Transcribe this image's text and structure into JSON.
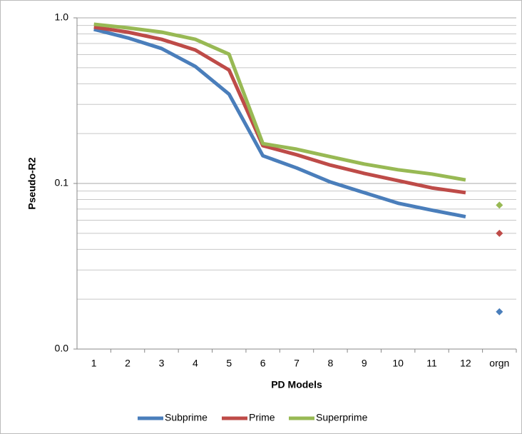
{
  "chart_data": {
    "type": "line",
    "x_label": "PD Models",
    "y_label": "Pseudo-R2",
    "categories": [
      "1",
      "2",
      "3",
      "4",
      "5",
      "6",
      "7",
      "8",
      "9",
      "10",
      "11",
      "12",
      "orgn"
    ],
    "marker_only_categories": [
      "orgn"
    ],
    "log_y": true,
    "ylim": [
      0.01,
      1
    ],
    "yticks": [
      {
        "value": 0.01,
        "label": "0.0"
      },
      {
        "value": 0.1,
        "label": "0.1"
      },
      {
        "value": 1,
        "label": "1.0"
      }
    ],
    "minor_yticks": [
      0.02,
      0.03,
      0.04,
      0.05,
      0.06,
      0.07,
      0.08,
      0.09,
      0.2,
      0.3,
      0.4,
      0.5,
      0.6,
      0.7,
      0.8,
      0.9
    ],
    "grid": true,
    "legend": "bottom",
    "series": [
      {
        "name": "Subprime",
        "color": "#4a7ebb",
        "values": [
          0.853,
          0.757,
          0.653,
          0.509,
          0.346,
          0.147,
          0.124,
          0.102,
          0.088,
          0.076,
          0.069,
          0.063,
          0.0168
        ]
      },
      {
        "name": "Prime",
        "color": "#be4b48",
        "values": [
          0.879,
          0.82,
          0.742,
          0.64,
          0.484,
          0.169,
          0.149,
          0.129,
          0.115,
          0.104,
          0.094,
          0.088,
          0.05
        ]
      },
      {
        "name": "Superprime",
        "color": "#98b954",
        "values": [
          0.915,
          0.87,
          0.82,
          0.742,
          0.603,
          0.174,
          0.161,
          0.145,
          0.131,
          0.121,
          0.114,
          0.105,
          0.074
        ]
      }
    ]
  }
}
